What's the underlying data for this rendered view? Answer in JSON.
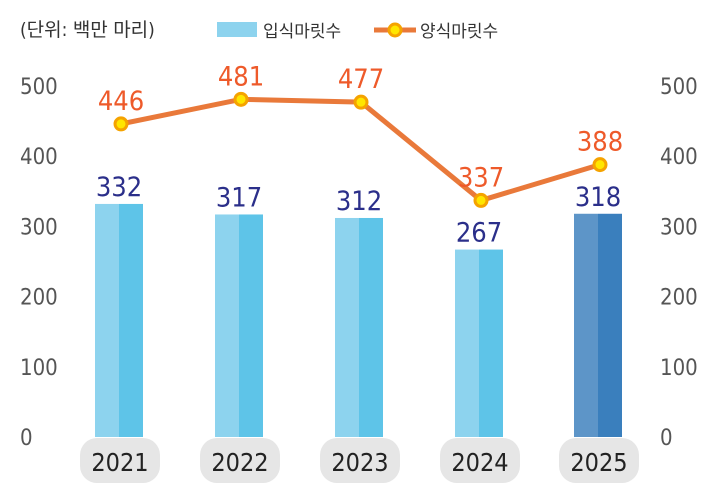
{
  "chart_data": {
    "type": "bar+line",
    "unit_label": "(단위: 백만 마리)",
    "categories": [
      "2021",
      "2022",
      "2023",
      "2024",
      "2025"
    ],
    "series": [
      {
        "name": "입식마릿수",
        "type": "bar",
        "values": [
          332,
          317,
          312,
          267,
          318
        ],
        "color": "#5ec4e8",
        "highlight_color": "#3a7fbd"
      },
      {
        "name": "양식마릿수",
        "type": "line",
        "values": [
          446,
          481,
          477,
          337,
          388
        ],
        "color": "#e9793a",
        "marker_color": "#ffe600"
      }
    ],
    "ylim": [
      0,
      500
    ],
    "yticks": [
      "0",
      "100",
      "200",
      "300",
      "400",
      "500"
    ],
    "legend": "top",
    "grid": false,
    "dual_axis": true
  }
}
